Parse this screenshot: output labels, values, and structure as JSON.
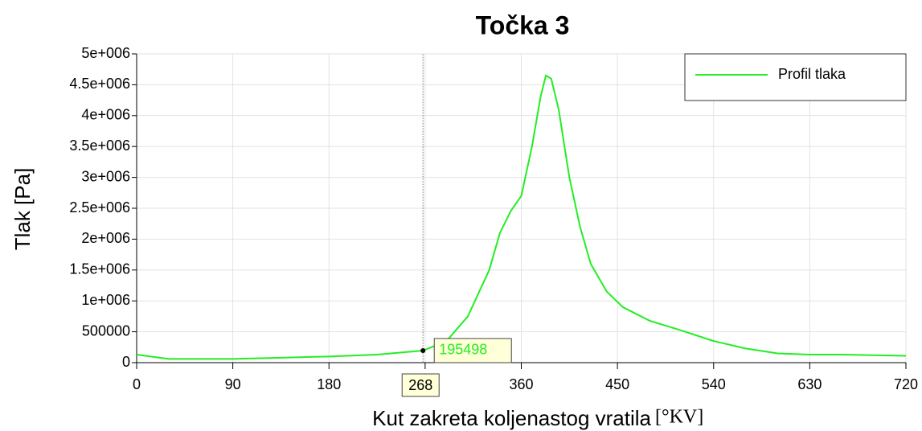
{
  "chart_data": {
    "type": "line",
    "title": "Točka 3",
    "xlabel": "Kut zakreta koljenastog vratila",
    "xunit": "[°KV]",
    "ylabel": "Tlak [Pa]",
    "x": [
      0,
      30,
      90,
      135,
      180,
      225,
      268,
      290,
      310,
      330,
      340,
      350,
      360,
      370,
      378,
      383,
      388,
      395,
      405,
      415,
      425,
      440,
      455,
      480,
      510,
      540,
      570,
      600,
      630,
      660,
      690,
      720
    ],
    "series": [
      {
        "name": "Profil tlaka",
        "color": "#22ee22",
        "values": [
          130000,
          60000,
          60000,
          80000,
          100000,
          130000,
          195498,
          350000,
          750000,
          1500000,
          2100000,
          2450000,
          2700000,
          3500000,
          4300000,
          4650000,
          4600000,
          4100000,
          3000000,
          2200000,
          1600000,
          1150000,
          900000,
          680000,
          520000,
          350000,
          230000,
          150000,
          130000,
          130000,
          120000,
          110000
        ]
      }
    ],
    "xlim": [
      0,
      720
    ],
    "xticks": [
      0,
      90,
      180,
      270,
      360,
      450,
      540,
      630,
      720
    ],
    "ylim": [
      0,
      5000000
    ],
    "yticks": [
      0,
      500000,
      {
        "value": 1000000,
        "label": "1e+006"
      },
      {
        "value": 1500000,
        "label": "1.5e+006"
      },
      {
        "value": 2000000,
        "label": "2e+006"
      },
      {
        "value": 2500000,
        "label": "2.5e+006"
      },
      {
        "value": 3000000,
        "label": "3e+006"
      },
      {
        "value": 3500000,
        "label": "3.5e+006"
      },
      {
        "value": 4000000,
        "label": "4e+006"
      },
      {
        "value": 4500000,
        "label": "4.5e+006"
      },
      {
        "value": 5000000,
        "label": "5e+006"
      }
    ],
    "grid": true,
    "legend": "upper right",
    "cursor": {
      "x": 268,
      "y": 195498
    }
  }
}
